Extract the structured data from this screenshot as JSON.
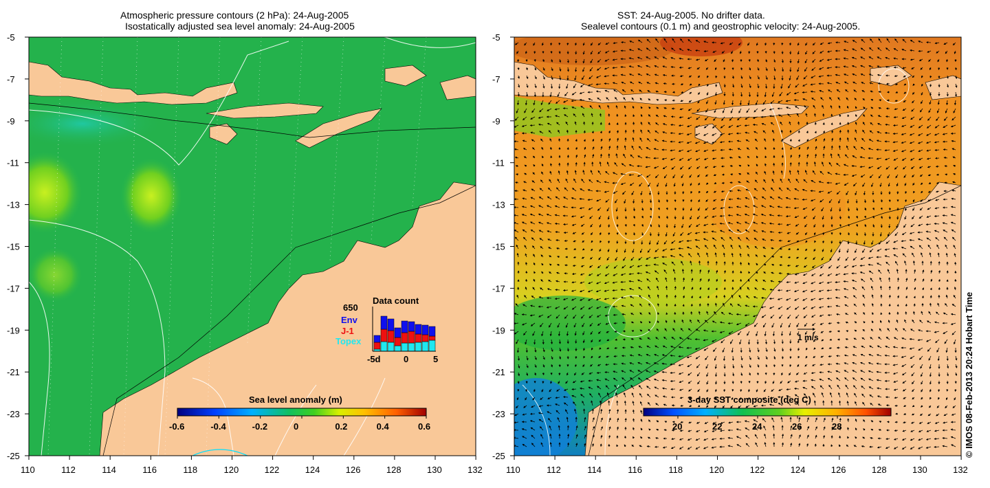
{
  "left_panel": {
    "title_line1": "Atmospheric pressure contours (2 hPa): 24-Aug-2005",
    "title_line2": "Isostatically adjusted sea level anomaly: 24-Aug-2005",
    "y_ticks": [
      "-5",
      "-7",
      "-9",
      "-11",
      "-13",
      "-15",
      "-17",
      "-19",
      "-21",
      "-23",
      "-25"
    ],
    "x_ticks": [
      "110",
      "112",
      "114",
      "116",
      "118",
      "120",
      "122",
      "124",
      "126",
      "128",
      "130",
      "132"
    ],
    "colorbar": {
      "title": "Sea level anomaly (m)",
      "ticks": [
        "-0.6",
        "-0.4",
        "-0.2",
        "0",
        "0.2",
        "0.4",
        "0.6"
      ]
    },
    "data_count": {
      "title": "Data count",
      "max_label": "650",
      "legend": [
        {
          "label": "Env",
          "color": "#1010ee"
        },
        {
          "label": "J-1",
          "color": "#ee1010"
        },
        {
          "label": "Topex",
          "color": "#20e8f0"
        }
      ],
      "x_ticks": [
        "-5d",
        "0",
        "5"
      ]
    }
  },
  "right_panel": {
    "title_line1": "SST: 24-Aug-2005. No drifter data.",
    "title_line2": "Sealevel contours (0.1 m) and geostrophic velocity: 24-Aug-2005.",
    "y_ticks": [
      "-5",
      "-7",
      "-9",
      "-11",
      "-13",
      "-15",
      "-17",
      "-19",
      "-21",
      "-23",
      "-25"
    ],
    "x_ticks": [
      "110",
      "112",
      "114",
      "116",
      "118",
      "120",
      "122",
      "124",
      "126",
      "128",
      "130",
      "132"
    ],
    "colorbar": {
      "title": "3-day SST composite (deg C)",
      "ticks": [
        "20",
        "22",
        "24",
        "26",
        "28"
      ]
    },
    "velocity_scale": "1 m/s"
  },
  "credit": "© IMOS 08-Feb-2013 20:24 Hobart Time",
  "colors": {
    "land": "#f9c898",
    "ocean_green": "#24b24c",
    "sst_orange": "#ef9a1e"
  }
}
